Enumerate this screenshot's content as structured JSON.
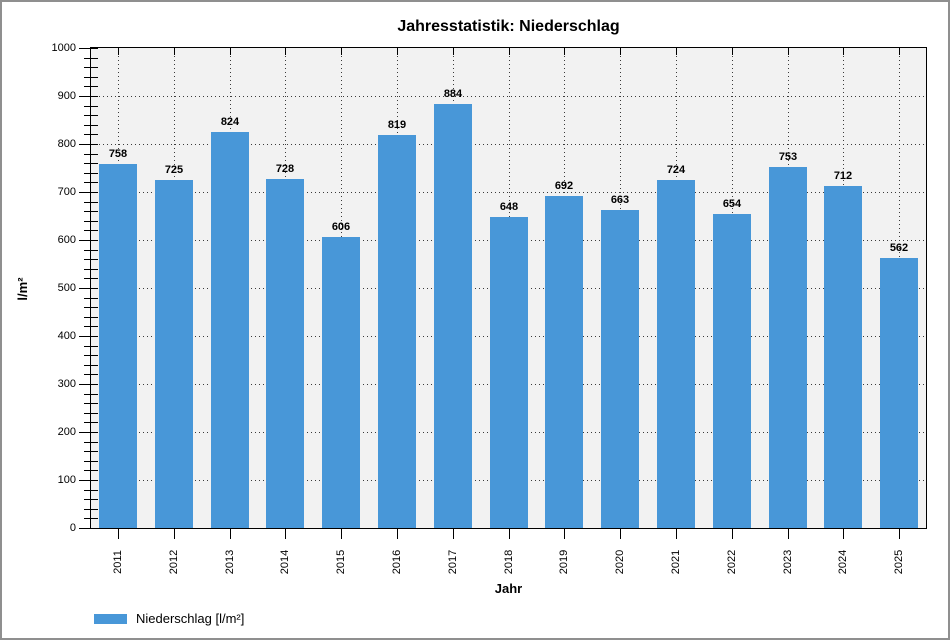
{
  "window": {
    "border_color": "#8f8f8f",
    "background": "#ffffff"
  },
  "chart_data": {
    "type": "bar",
    "title": "Jahresstatistik: Niederschlag",
    "xlabel": "Jahr",
    "ylabel": "l/m²",
    "legend_label": "Niederschlag [l/m²]",
    "legend_position": "bottom-left",
    "categories": [
      "2011",
      "2012",
      "2013",
      "2014",
      "2015",
      "2016",
      "2017",
      "2018",
      "2019",
      "2020",
      "2021",
      "2022",
      "2023",
      "2024",
      "2025"
    ],
    "series": [
      {
        "name": "Niederschlag [l/m²]",
        "values": [
          758,
          725,
          824,
          728,
          606,
          819,
          884,
          648,
          692,
          663,
          724,
          654,
          753,
          712,
          562
        ]
      }
    ],
    "ylim": [
      0,
      1000
    ],
    "yticks": [
      0,
      100,
      200,
      300,
      400,
      500,
      600,
      700,
      800,
      900,
      1000
    ],
    "minor_tick_step": 20,
    "grid": "dotted",
    "bar_value_labels": true,
    "x_tick_label_rotation_deg": -90,
    "colors": {
      "bar": "#4897d8",
      "plot_background": "#f2f2f2",
      "grid": "#3a3a3a",
      "axis": "#000000",
      "text": "#000000"
    }
  }
}
